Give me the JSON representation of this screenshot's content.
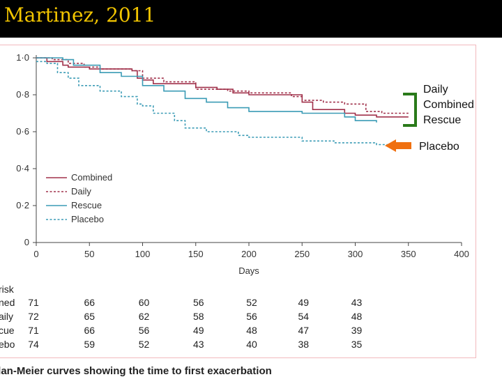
{
  "slide_title": "Martinez, 2011",
  "caption": "plan-Meier curves showing the time to first exacerbation",
  "annotations": {
    "bracket_labels": [
      "Daily",
      "Combined",
      "Rescue"
    ],
    "bracket_color": "#2a7a1a",
    "arrow_label": "Placebo",
    "arrow_color": "#f07010"
  },
  "chart_data": {
    "type": "line",
    "title": "",
    "xlabel": "Days",
    "ylabel": "",
    "xlim": [
      0,
      400
    ],
    "ylim": [
      0,
      1.0
    ],
    "x_ticks": [
      "0",
      "50",
      "100",
      "150",
      "200",
      "250",
      "300",
      "350",
      "400"
    ],
    "y_ticks": [
      "0",
      "0·2",
      "0·4",
      "0·6",
      "0·8",
      "1·0"
    ],
    "legend_position": "left",
    "series": [
      {
        "name": "Combined",
        "color": "#a0304a",
        "style": "solid",
        "points": [
          [
            0,
            1.0
          ],
          [
            10,
            0.98
          ],
          [
            25,
            0.96
          ],
          [
            30,
            0.95
          ],
          [
            50,
            0.94
          ],
          [
            90,
            0.93
          ],
          [
            95,
            0.89
          ],
          [
            100,
            0.88
          ],
          [
            110,
            0.86
          ],
          [
            150,
            0.84
          ],
          [
            170,
            0.83
          ],
          [
            185,
            0.81
          ],
          [
            200,
            0.8
          ],
          [
            250,
            0.76
          ],
          [
            260,
            0.72
          ],
          [
            290,
            0.7
          ],
          [
            300,
            0.69
          ],
          [
            320,
            0.68
          ],
          [
            350,
            0.68
          ]
        ]
      },
      {
        "name": "Daily",
        "color": "#a0304a",
        "style": "dashed",
        "points": [
          [
            0,
            1.0
          ],
          [
            15,
            0.99
          ],
          [
            30,
            0.97
          ],
          [
            45,
            0.95
          ],
          [
            60,
            0.94
          ],
          [
            90,
            0.93
          ],
          [
            100,
            0.89
          ],
          [
            120,
            0.87
          ],
          [
            150,
            0.83
          ],
          [
            180,
            0.82
          ],
          [
            200,
            0.81
          ],
          [
            240,
            0.79
          ],
          [
            250,
            0.77
          ],
          [
            270,
            0.76
          ],
          [
            290,
            0.75
          ],
          [
            310,
            0.71
          ],
          [
            325,
            0.7
          ],
          [
            350,
            0.7
          ]
        ]
      },
      {
        "name": "Rescue",
        "color": "#3a9bb5",
        "style": "solid",
        "points": [
          [
            0,
            1.0
          ],
          [
            25,
            0.99
          ],
          [
            35,
            0.96
          ],
          [
            60,
            0.92
          ],
          [
            80,
            0.9
          ],
          [
            100,
            0.85
          ],
          [
            120,
            0.82
          ],
          [
            140,
            0.78
          ],
          [
            160,
            0.76
          ],
          [
            180,
            0.73
          ],
          [
            200,
            0.71
          ],
          [
            240,
            0.71
          ],
          [
            250,
            0.7
          ],
          [
            290,
            0.68
          ],
          [
            300,
            0.66
          ],
          [
            320,
            0.65
          ]
        ]
      },
      {
        "name": "Placebo",
        "color": "#3a9bb5",
        "style": "dashed",
        "points": [
          [
            0,
            0.98
          ],
          [
            10,
            0.97
          ],
          [
            20,
            0.92
          ],
          [
            30,
            0.89
          ],
          [
            40,
            0.85
          ],
          [
            60,
            0.82
          ],
          [
            80,
            0.79
          ],
          [
            95,
            0.75
          ],
          [
            100,
            0.74
          ],
          [
            110,
            0.7
          ],
          [
            130,
            0.66
          ],
          [
            140,
            0.62
          ],
          [
            160,
            0.6
          ],
          [
            190,
            0.58
          ],
          [
            200,
            0.57
          ],
          [
            250,
            0.55
          ],
          [
            280,
            0.54
          ],
          [
            320,
            0.53
          ],
          [
            345,
            0.53
          ]
        ]
      }
    ],
    "risk_table": {
      "header": "risk",
      "rows": [
        {
          "label": "ned",
          "values": [
            "71",
            "66",
            "60",
            "56",
            "52",
            "49",
            "43"
          ]
        },
        {
          "label": "aily",
          "values": [
            "72",
            "65",
            "62",
            "58",
            "56",
            "54",
            "48"
          ]
        },
        {
          "label": "cue",
          "values": [
            "71",
            "66",
            "56",
            "49",
            "48",
            "47",
            "39"
          ]
        },
        {
          "label": "ebo",
          "values": [
            "74",
            "59",
            "52",
            "43",
            "40",
            "38",
            "35"
          ]
        }
      ]
    }
  }
}
